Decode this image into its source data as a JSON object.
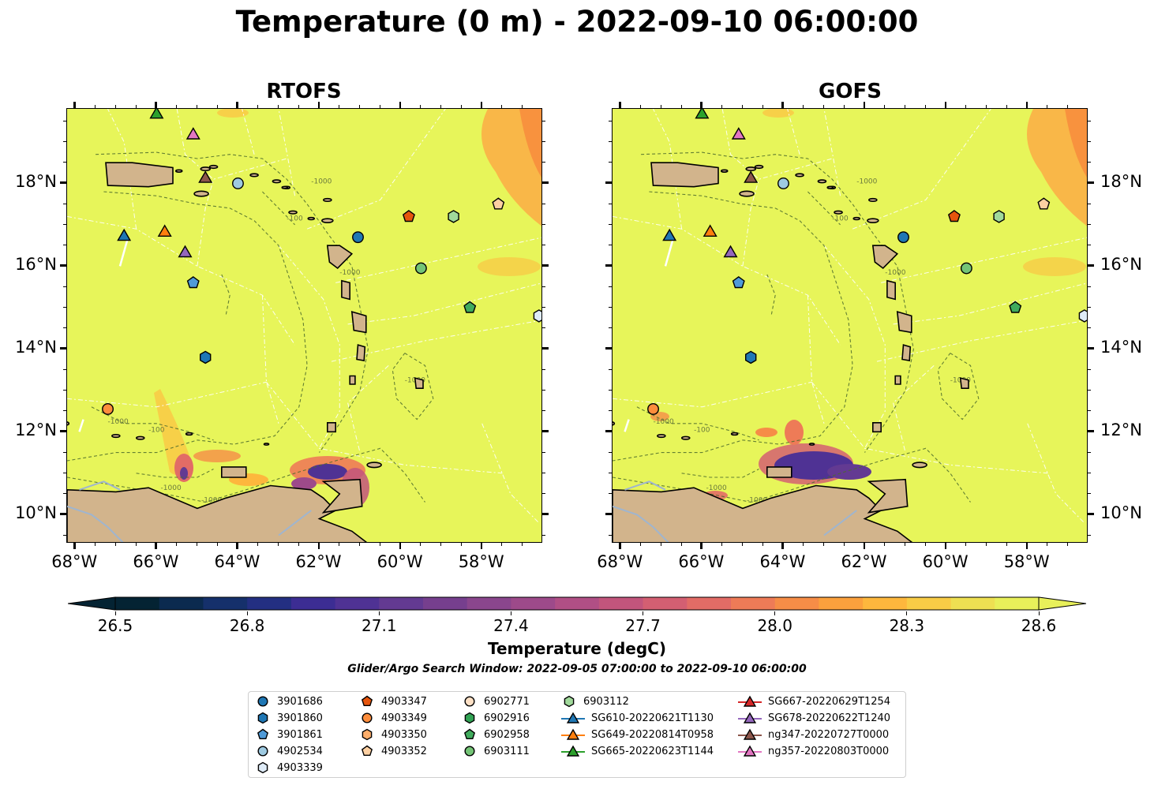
{
  "title": "Temperature (0 m) - 2022-09-10 06:00:00",
  "panels": [
    {
      "title": "RTOFS",
      "lat_labels_side": "left"
    },
    {
      "title": "GOFS",
      "lat_labels_side": "right"
    }
  ],
  "axes": {
    "lon_labels": [
      "68°W",
      "66°W",
      "64°W",
      "62°W",
      "60°W",
      "58°W"
    ],
    "lon_values": [
      -68,
      -66,
      -64,
      -62,
      -60,
      -58
    ],
    "lat_labels": [
      "18°N",
      "16°N",
      "14°N",
      "12°N",
      "10°N"
    ],
    "lat_values": [
      18,
      16,
      14,
      12,
      10
    ],
    "lon_range": [
      -68.2,
      -56.5
    ],
    "lat_range": [
      9.3,
      19.8
    ]
  },
  "colorbar": {
    "label": "Temperature (degC)",
    "tick_labels": [
      "26.5",
      "26.8",
      "27.1",
      "27.4",
      "27.7",
      "28.0",
      "28.3",
      "28.6"
    ],
    "range": [
      26.5,
      28.6
    ],
    "extend": "both",
    "colormap": "thermal",
    "colors": [
      "#042333",
      "#0b2a4f",
      "#15306b",
      "#232f82",
      "#3c2d93",
      "#4f3294",
      "#633a92",
      "#763f8e",
      "#8a468d",
      "#9d4a8a",
      "#b04f85",
      "#c2557c",
      "#d35f72",
      "#e26c66",
      "#ee7b57",
      "#f68d47",
      "#fba13d",
      "#fdb73d",
      "#f8cc46",
      "#eee052",
      "#e8f05a"
    ]
  },
  "search_window": "Glider/Argo Search Window: 2022-09-05 07:00:00 to 2022-09-10 06:00:00",
  "legend": [
    {
      "label": "3901686",
      "marker": "circle",
      "color": "#1f77b4"
    },
    {
      "label": "3901860",
      "marker": "hexagon",
      "color": "#1f77b4"
    },
    {
      "label": "3901861",
      "marker": "pentagon",
      "color": "#4f9bd9"
    },
    {
      "label": "4902534",
      "marker": "circle",
      "color": "#9ecae1"
    },
    {
      "label": "4903339",
      "marker": "hexagon",
      "color": "#deebf7"
    },
    {
      "label": "4903347",
      "marker": "pentagon",
      "color": "#e6550d"
    },
    {
      "label": "4903349",
      "marker": "circle",
      "color": "#fd8d3c"
    },
    {
      "label": "4903350",
      "marker": "hexagon",
      "color": "#fdae6b"
    },
    {
      "label": "4903352",
      "marker": "pentagon",
      "color": "#fdd0a2"
    },
    {
      "label": "6902771",
      "marker": "circle",
      "color": "#fde0c5"
    },
    {
      "label": "6902916",
      "marker": "hexagon",
      "color": "#31a354"
    },
    {
      "label": "6902958",
      "marker": "pentagon",
      "color": "#41ab5d"
    },
    {
      "label": "6903111",
      "marker": "circle",
      "color": "#74c476"
    },
    {
      "label": "6903112",
      "marker": "hexagon",
      "color": "#a1d99b"
    },
    {
      "label": "SG610-20220621T1130",
      "marker": "triangle-line",
      "color": "#1f77b4"
    },
    {
      "label": "SG649-20220814T0958",
      "marker": "triangle-line",
      "color": "#ff7f0e"
    },
    {
      "label": "SG665-20220623T1144",
      "marker": "triangle-line",
      "color": "#2ca02c"
    },
    {
      "label": "SG667-20220629T1254",
      "marker": "triangle-line",
      "color": "#d62728"
    },
    {
      "label": "SG678-20220622T1240",
      "marker": "triangle-line",
      "color": "#9467bd"
    },
    {
      "label": "ng347-20220727T0000",
      "marker": "triangle-line",
      "color": "#8c564b"
    },
    {
      "label": "ng357-20220803T0000",
      "marker": "triangle-line",
      "color": "#e377c2"
    }
  ],
  "observations": [
    {
      "id": "3901686",
      "lon": -61.05,
      "lat": 16.7
    },
    {
      "id": "3901860",
      "lon": -64.8,
      "lat": 13.8
    },
    {
      "id": "3901861",
      "lon": -65.1,
      "lat": 15.6
    },
    {
      "id": "4902534",
      "lon": -64.0,
      "lat": 18.0
    },
    {
      "id": "4903339",
      "lon": -56.6,
      "lat": 14.8
    },
    {
      "id": "4903347",
      "lon": -59.8,
      "lat": 17.2
    },
    {
      "id": "4903349",
      "lon": -67.2,
      "lat": 12.55
    },
    {
      "id": "4903352",
      "lon": -57.6,
      "lat": 17.5
    },
    {
      "id": "6902958",
      "lon": -58.3,
      "lat": 15.0
    },
    {
      "id": "6903111",
      "lon": -59.5,
      "lat": 15.95
    },
    {
      "id": "6903112",
      "lon": -58.7,
      "lat": 17.2
    },
    {
      "id": "SG610-20220621T1130",
      "lon": -66.8,
      "lat": 16.75
    },
    {
      "id": "SG649-20220814T0958",
      "lon": -65.8,
      "lat": 16.85
    },
    {
      "id": "SG665-20220623T1144",
      "lon": -66.0,
      "lat": 19.7
    },
    {
      "id": "SG678-20220622T1240",
      "lon": -65.3,
      "lat": 16.35
    },
    {
      "id": "ng347-20220727T0000",
      "lon": -64.8,
      "lat": 18.15
    },
    {
      "id": "ng357-20220803T0000",
      "lon": -65.1,
      "lat": 19.2
    }
  ]
}
